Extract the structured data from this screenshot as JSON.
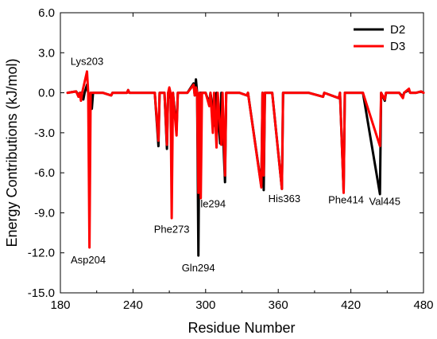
{
  "chart_data": {
    "type": "line",
    "title": "",
    "xlabel": "Residue Number",
    "ylabel": "Energy Contributions (kJ/mol)",
    "xlim": [
      180,
      480
    ],
    "ylim": [
      -15.0,
      6.0
    ],
    "xticks": [
      180,
      240,
      300,
      360,
      420,
      480
    ],
    "xtick_labels": [
      "180",
      "240",
      "300",
      "360",
      "420",
      "480"
    ],
    "yticks": [
      6.0,
      3.0,
      0.0,
      -3.0,
      -6.0,
      -9.0,
      -12.0,
      -15.0
    ],
    "ytick_labels": [
      "6.0",
      "3.0",
      "0.0",
      "-3.0",
      "-6.0",
      "-9.0",
      "-12.0",
      "-15.0"
    ],
    "grid": false,
    "legend_position": "top-right",
    "series": [
      {
        "name": "D2",
        "color": "#000000",
        "points": [
          [
            186,
            0.0
          ],
          [
            193,
            0.1
          ],
          [
            196,
            -0.3
          ],
          [
            197,
            0.0
          ],
          [
            199,
            -0.5
          ],
          [
            200,
            0.0
          ],
          [
            202,
            0.6
          ],
          [
            203,
            0.0
          ],
          [
            204,
            -0.5
          ],
          [
            205,
            0.0
          ],
          [
            206,
            -1.2
          ],
          [
            207,
            0.0
          ],
          [
            215,
            0.0
          ],
          [
            222,
            -0.2
          ],
          [
            223,
            0.0
          ],
          [
            235,
            0.0
          ],
          [
            236,
            0.2
          ],
          [
            237,
            0.0
          ],
          [
            258,
            0.0
          ],
          [
            261,
            -4.0
          ],
          [
            262,
            0.0
          ],
          [
            266,
            0.0
          ],
          [
            268,
            -4.2
          ],
          [
            269,
            0.0
          ],
          [
            272,
            -0.6
          ],
          [
            273,
            0.0
          ],
          [
            276,
            -2.8
          ],
          [
            277,
            0.0
          ],
          [
            285,
            0.0
          ],
          [
            290,
            0.7
          ],
          [
            291,
            -0.2
          ],
          [
            292,
            1.0
          ],
          [
            293,
            0.0
          ],
          [
            294,
            -12.2
          ],
          [
            295,
            0.0
          ],
          [
            300,
            0.0
          ],
          [
            303,
            -0.8
          ],
          [
            304,
            0.0
          ],
          [
            308,
            -2.5
          ],
          [
            309,
            0.0
          ],
          [
            312,
            -3.8
          ],
          [
            313,
            0.0
          ],
          [
            316,
            -6.7
          ],
          [
            317,
            0.0
          ],
          [
            328,
            0.0
          ],
          [
            334,
            -0.2
          ],
          [
            335,
            0.0
          ],
          [
            346,
            -7.0
          ],
          [
            347,
            0.0
          ],
          [
            348,
            -7.3
          ],
          [
            349,
            0.0
          ],
          [
            355,
            0.0
          ],
          [
            363,
            -7.2
          ],
          [
            364,
            0.0
          ],
          [
            385,
            0.0
          ],
          [
            397,
            -0.3
          ],
          [
            398,
            0.0
          ],
          [
            410,
            -0.4
          ],
          [
            411,
            0.0
          ],
          [
            414,
            -7.4
          ],
          [
            415,
            0.0
          ],
          [
            430,
            0.0
          ],
          [
            444,
            -7.6
          ],
          [
            445,
            0.0
          ],
          [
            448,
            -0.6
          ],
          [
            449,
            0.0
          ],
          [
            460,
            0.0
          ],
          [
            463,
            -0.3
          ],
          [
            464,
            0.0
          ],
          [
            468,
            0.2
          ],
          [
            469,
            0.0
          ],
          [
            474,
            0.0
          ],
          [
            478,
            0.1
          ],
          [
            480,
            0.0
          ]
        ]
      },
      {
        "name": "D3",
        "color": "#ff0000",
        "points": [
          [
            186,
            0.0
          ],
          [
            193,
            0.1
          ],
          [
            195,
            -0.3
          ],
          [
            196,
            0.0
          ],
          [
            197,
            -0.6
          ],
          [
            198,
            0.0
          ],
          [
            202,
            1.6
          ],
          [
            203,
            0.0
          ],
          [
            204,
            -11.6
          ],
          [
            205,
            0.0
          ],
          [
            215,
            0.0
          ],
          [
            222,
            -0.2
          ],
          [
            223,
            0.0
          ],
          [
            235,
            0.0
          ],
          [
            236,
            0.2
          ],
          [
            237,
            0.0
          ],
          [
            258,
            0.0
          ],
          [
            261,
            -3.6
          ],
          [
            262,
            0.0
          ],
          [
            266,
            0.0
          ],
          [
            268,
            -3.9
          ],
          [
            269,
            0.0
          ],
          [
            270,
            0.4
          ],
          [
            271,
            0.0
          ],
          [
            272,
            -9.4
          ],
          [
            273,
            0.0
          ],
          [
            276,
            -3.2
          ],
          [
            277,
            0.0
          ],
          [
            285,
            0.0
          ],
          [
            290,
            0.6
          ],
          [
            291,
            -0.2
          ],
          [
            292,
            0.4
          ],
          [
            293,
            0.0
          ],
          [
            294,
            -7.5
          ],
          [
            295,
            0.0
          ],
          [
            296,
            -7.9
          ],
          [
            297,
            0.0
          ],
          [
            300,
            0.0
          ],
          [
            303,
            -1.0
          ],
          [
            304,
            0.0
          ],
          [
            306,
            -3.0
          ],
          [
            307,
            0.0
          ],
          [
            309,
            -4.1
          ],
          [
            310,
            0.0
          ],
          [
            313,
            -3.9
          ],
          [
            314,
            0.0
          ],
          [
            316,
            -6.2
          ],
          [
            317,
            0.0
          ],
          [
            328,
            0.0
          ],
          [
            334,
            -0.2
          ],
          [
            335,
            0.0
          ],
          [
            346,
            -7.1
          ],
          [
            347,
            0.0
          ],
          [
            348,
            -6.2
          ],
          [
            349,
            0.0
          ],
          [
            355,
            0.0
          ],
          [
            363,
            -7.2
          ],
          [
            364,
            0.0
          ],
          [
            385,
            0.0
          ],
          [
            397,
            -0.3
          ],
          [
            398,
            0.0
          ],
          [
            410,
            -0.4
          ],
          [
            411,
            0.0
          ],
          [
            414,
            -7.5
          ],
          [
            415,
            0.0
          ],
          [
            430,
            0.0
          ],
          [
            444,
            -4.0
          ],
          [
            445,
            0.0
          ],
          [
            448,
            -0.5
          ],
          [
            449,
            0.0
          ],
          [
            460,
            0.0
          ],
          [
            463,
            -0.4
          ],
          [
            464,
            0.0
          ],
          [
            468,
            0.3
          ],
          [
            469,
            0.0
          ],
          [
            474,
            0.0
          ],
          [
            478,
            0.1
          ],
          [
            480,
            0.0
          ]
        ]
      }
    ],
    "annotations": [
      {
        "text": "Lys203",
        "x": 202,
        "y": 2.4
      },
      {
        "text": "Asp204",
        "x": 203,
        "y": -12.5
      },
      {
        "text": "Phe273",
        "x": 272,
        "y": -10.2
      },
      {
        "text": "Gln294",
        "x": 294,
        "y": -13.1
      },
      {
        "text": "Ile294",
        "x": 305,
        "y": -8.3
      },
      {
        "text": "His363",
        "x": 365,
        "y": -7.9
      },
      {
        "text": "Phe414",
        "x": 416,
        "y": -8.0
      },
      {
        "text": "Val445",
        "x": 448,
        "y": -8.1
      }
    ]
  }
}
